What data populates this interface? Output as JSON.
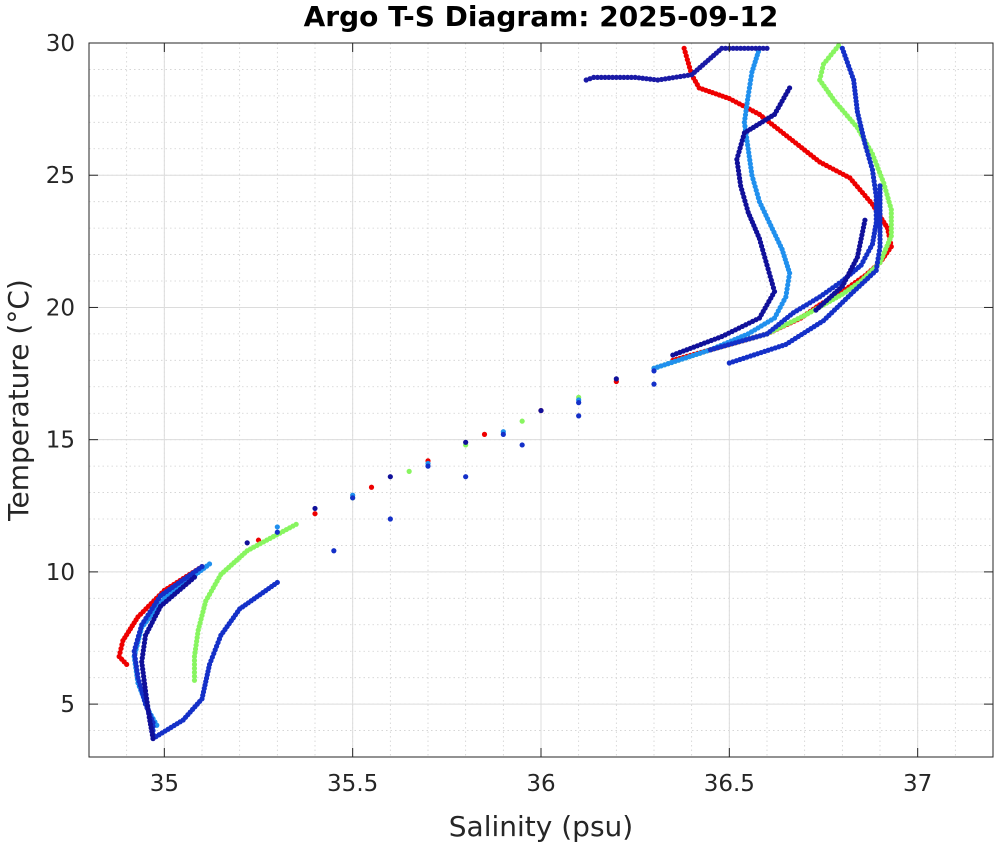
{
  "chart_data": {
    "type": "scatter",
    "title": "Argo T-S Diagram: 2025-09-12",
    "xlabel": "Salinity (psu)",
    "ylabel": "Temperature (°C)",
    "xlim": [
      34.8,
      37.2
    ],
    "ylim": [
      3,
      30
    ],
    "xticks": [
      35,
      35.5,
      36,
      36.5,
      37
    ],
    "xtick_labels": [
      "35",
      "35.5",
      "36",
      "36.5",
      "37"
    ],
    "yticks": [
      5,
      10,
      15,
      20,
      25,
      30
    ],
    "ytick_labels": [
      "5",
      "10",
      "15",
      "20",
      "25",
      "30"
    ],
    "minor_x_step": 0.1,
    "minor_y_step": 1,
    "grid": true,
    "minor_grid": true,
    "legend": "none",
    "series": [
      {
        "color": "#ee0000",
        "points": [
          [
            36.38,
            29.8
          ],
          [
            36.4,
            28.8
          ],
          [
            36.42,
            28.3
          ],
          [
            36.5,
            27.9
          ],
          [
            36.58,
            27.3
          ],
          [
            36.66,
            26.4
          ],
          [
            36.74,
            25.5
          ],
          [
            36.82,
            24.9
          ],
          [
            36.88,
            23.9
          ],
          [
            36.92,
            23.0
          ],
          [
            36.93,
            22.3
          ],
          [
            36.9,
            21.7
          ],
          [
            36.86,
            21.2
          ],
          [
            36.8,
            20.6
          ],
          [
            36.74,
            20.1
          ],
          [
            36.69,
            19.6
          ],
          [
            36.6,
            19.0
          ],
          [
            36.5,
            18.6
          ],
          [
            36.35,
            18.0
          ],
          [
            36.2,
            17.2
          ],
          [
            36.0,
            16.1
          ],
          [
            35.85,
            15.2
          ],
          [
            35.7,
            14.2
          ],
          [
            35.55,
            13.2
          ],
          [
            35.4,
            12.2
          ],
          [
            35.25,
            11.2
          ],
          [
            35.1,
            10.2
          ],
          [
            35.0,
            9.3
          ],
          [
            34.93,
            8.3
          ],
          [
            34.89,
            7.4
          ],
          [
            34.88,
            6.8
          ],
          [
            34.9,
            6.5
          ]
        ]
      },
      {
        "color": "#88f560",
        "points": [
          [
            36.79,
            29.9
          ],
          [
            36.75,
            29.2
          ],
          [
            36.74,
            28.6
          ],
          [
            36.78,
            27.8
          ],
          [
            36.84,
            26.8
          ],
          [
            36.88,
            25.8
          ],
          [
            36.91,
            24.7
          ],
          [
            36.93,
            23.7
          ],
          [
            36.93,
            22.7
          ],
          [
            36.9,
            21.7
          ],
          [
            36.85,
            21.0
          ],
          [
            36.8,
            20.5
          ],
          [
            36.7,
            19.7
          ],
          [
            36.6,
            19.0
          ],
          [
            36.45,
            18.4
          ],
          [
            36.3,
            17.7
          ],
          [
            36.1,
            16.6
          ],
          [
            35.95,
            15.7
          ],
          [
            35.8,
            14.8
          ],
          [
            35.65,
            13.8
          ],
          [
            35.5,
            12.8
          ],
          [
            35.35,
            11.8
          ],
          [
            35.22,
            10.8
          ],
          [
            35.15,
            9.9
          ],
          [
            35.11,
            8.9
          ],
          [
            35.09,
            7.8
          ],
          [
            35.08,
            6.8
          ],
          [
            35.08,
            5.9
          ]
        ]
      },
      {
        "color": "#2090ee",
        "points": [
          [
            36.58,
            29.8
          ],
          [
            36.56,
            28.9
          ],
          [
            36.55,
            28.0
          ],
          [
            36.54,
            27.0
          ],
          [
            36.55,
            26.0
          ],
          [
            36.56,
            25.0
          ],
          [
            36.58,
            24.0
          ],
          [
            36.61,
            23.1
          ],
          [
            36.64,
            22.2
          ],
          [
            36.66,
            21.3
          ],
          [
            36.65,
            20.4
          ],
          [
            36.62,
            19.6
          ],
          [
            36.55,
            19.0
          ],
          [
            36.45,
            18.4
          ],
          [
            36.3,
            17.7
          ],
          [
            36.1,
            16.5
          ],
          [
            35.9,
            15.3
          ],
          [
            35.7,
            14.1
          ],
          [
            35.5,
            12.9
          ],
          [
            35.3,
            11.7
          ],
          [
            35.12,
            10.3
          ],
          [
            35.0,
            9.0
          ],
          [
            34.94,
            7.9
          ],
          [
            34.92,
            6.8
          ],
          [
            34.93,
            5.8
          ],
          [
            34.96,
            4.7
          ],
          [
            34.98,
            4.2
          ]
        ]
      },
      {
        "color": "#1430c8",
        "points": [
          [
            36.8,
            29.8
          ],
          [
            36.83,
            28.6
          ],
          [
            36.84,
            27.4
          ],
          [
            36.86,
            26.2
          ],
          [
            36.88,
            25.2
          ],
          [
            36.89,
            24.2
          ],
          [
            36.89,
            23.2
          ],
          [
            36.88,
            22.4
          ],
          [
            36.85,
            21.6
          ],
          [
            36.8,
            21.0
          ],
          [
            36.74,
            20.4
          ],
          [
            36.67,
            19.8
          ],
          [
            36.6,
            19.0
          ],
          [
            36.45,
            18.4
          ],
          [
            36.3,
            17.6
          ],
          [
            36.1,
            16.4
          ],
          [
            35.9,
            15.2
          ],
          [
            35.7,
            14.0
          ],
          [
            35.5,
            12.8
          ],
          [
            35.3,
            11.5
          ],
          [
            35.1,
            10.2
          ],
          [
            34.99,
            9.1
          ],
          [
            34.94,
            8.0
          ],
          [
            34.92,
            7.0
          ],
          [
            34.93,
            6.0
          ],
          [
            34.95,
            5.0
          ],
          [
            34.97,
            4.3
          ],
          [
            34.97,
            3.7
          ],
          [
            35.05,
            4.4
          ],
          [
            35.1,
            5.2
          ],
          [
            35.12,
            6.5
          ],
          [
            35.15,
            7.6
          ],
          [
            35.2,
            8.6
          ],
          [
            35.3,
            9.6
          ],
          [
            35.45,
            10.8
          ],
          [
            35.6,
            12.0
          ],
          [
            35.8,
            13.6
          ],
          [
            35.95,
            14.8
          ],
          [
            36.1,
            15.9
          ],
          [
            36.3,
            17.1
          ],
          [
            36.5,
            17.9
          ],
          [
            36.65,
            18.6
          ],
          [
            36.75,
            19.5
          ],
          [
            36.83,
            20.6
          ],
          [
            36.89,
            21.4
          ],
          [
            36.9,
            22.3
          ],
          [
            36.9,
            23.0
          ],
          [
            36.9,
            24.6
          ]
        ]
      },
      {
        "color": "#10109a",
        "points": [
          [
            36.66,
            28.3
          ],
          [
            36.62,
            27.3
          ],
          [
            36.54,
            26.6
          ],
          [
            36.52,
            25.6
          ],
          [
            36.53,
            24.6
          ],
          [
            36.55,
            23.6
          ],
          [
            36.58,
            22.6
          ],
          [
            36.6,
            21.6
          ],
          [
            36.62,
            20.6
          ],
          [
            36.58,
            19.6
          ],
          [
            36.48,
            18.9
          ],
          [
            36.35,
            18.2
          ],
          [
            36.2,
            17.3
          ],
          [
            36.0,
            16.1
          ],
          [
            35.8,
            14.9
          ],
          [
            35.6,
            13.6
          ],
          [
            35.4,
            12.4
          ],
          [
            35.22,
            11.1
          ],
          [
            35.08,
            9.8
          ],
          [
            34.99,
            8.7
          ],
          [
            34.95,
            7.6
          ],
          [
            34.94,
            6.6
          ],
          [
            34.95,
            5.5
          ],
          [
            34.96,
            4.5
          ],
          [
            34.97,
            3.7
          ],
          [
            36.86,
            23.3
          ],
          [
            36.84,
            21.9
          ],
          [
            36.8,
            20.8
          ],
          [
            36.73,
            19.9
          ]
        ]
      },
      {
        "color": "#1a1aa6",
        "points": [
          [
            36.12,
            28.6
          ],
          [
            36.14,
            28.7
          ],
          [
            36.25,
            28.7
          ],
          [
            36.31,
            28.6
          ],
          [
            36.4,
            28.8
          ],
          [
            36.48,
            29.8
          ],
          [
            36.6,
            29.8
          ]
        ]
      }
    ]
  }
}
